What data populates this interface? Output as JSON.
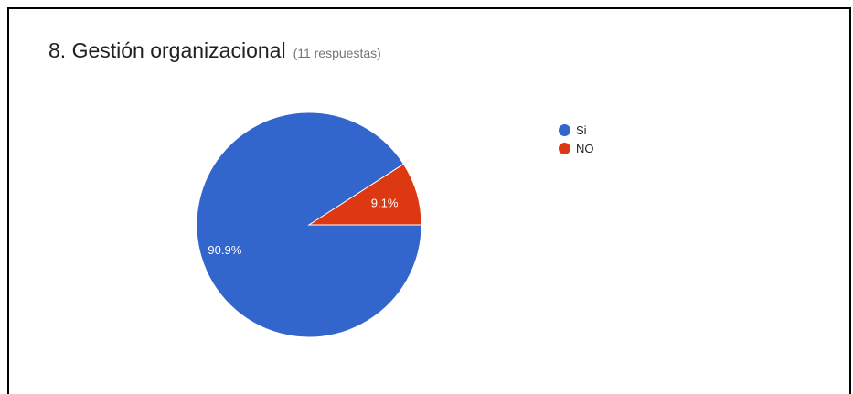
{
  "question": {
    "title": "8. Gestión organizacional",
    "responses": "(11 respuestas)"
  },
  "chart_data": {
    "type": "pie",
    "categories": [
      "Si",
      "NO"
    ],
    "values": [
      90.9,
      9.1
    ],
    "labels": [
      "90.9%",
      "9.1%"
    ],
    "colors": [
      "#3366cc",
      "#dc3912"
    ],
    "legend_position": "right"
  }
}
